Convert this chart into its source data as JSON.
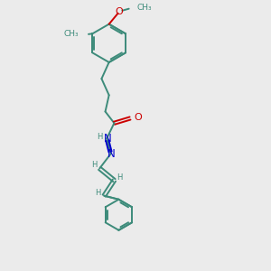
{
  "bg_color": "#ebebeb",
  "bond_color": "#3d8b7a",
  "N_color": "#0000cc",
  "O_color": "#cc0000",
  "text_color": "#3d8b7a",
  "bond_lw": 1.4,
  "font_size": 7.0,
  "fig_size": [
    3.0,
    3.0
  ],
  "dpi": 100,
  "xlim": [
    0,
    10
  ],
  "ylim": [
    0,
    10
  ]
}
